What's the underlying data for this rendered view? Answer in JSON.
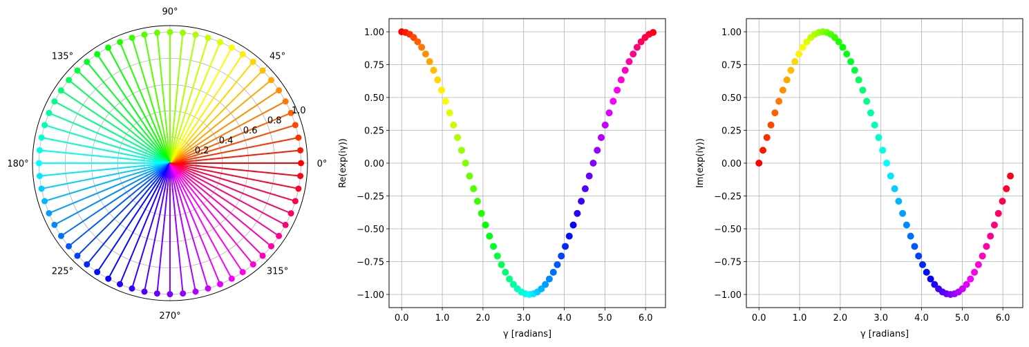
{
  "colormap": "hsv",
  "chart_data": [
    {
      "type": "polar-stem",
      "title": "",
      "theta_unit": "radians",
      "theta_tick_labels": [
        "0°",
        "45°",
        "90°",
        "135°",
        "180°",
        "225°",
        "270°",
        "315°"
      ],
      "r_tick_labels": [
        "0.2",
        "0.4",
        "0.6",
        "0.8",
        "1.0"
      ],
      "r_ticks": [
        0.2,
        0.4,
        0.6,
        0.8,
        1.0
      ],
      "rlim": [
        0,
        1.05
      ],
      "grid": true,
      "theta": [
        0,
        0.098,
        0.196,
        0.295,
        0.393,
        0.491,
        0.589,
        0.687,
        0.785,
        0.884,
        0.982,
        1.08,
        1.178,
        1.276,
        1.374,
        1.473,
        1.571,
        1.669,
        1.767,
        1.865,
        1.963,
        2.062,
        2.16,
        2.258,
        2.356,
        2.454,
        2.553,
        2.651,
        2.749,
        2.847,
        2.945,
        3.043,
        3.142,
        3.24,
        3.338,
        3.436,
        3.534,
        3.632,
        3.731,
        3.829,
        3.927,
        4.025,
        4.123,
        4.222,
        4.32,
        4.418,
        4.516,
        4.614,
        4.712,
        4.811,
        4.909,
        5.007,
        5.105,
        5.203,
        5.301,
        5.4,
        5.498,
        5.596,
        5.694,
        5.792,
        5.89,
        5.989,
        6.087,
        6.185
      ],
      "r": 1.0
    },
    {
      "type": "scatter",
      "xlabel": "γ [radians]",
      "ylabel": "Re(exp(iγ))",
      "xlim": [
        -0.31,
        6.49
      ],
      "ylim": [
        -1.1,
        1.1
      ],
      "x_ticks": [
        0,
        1,
        2,
        3,
        4,
        5,
        6
      ],
      "x_tick_labels": [
        "0.0",
        "1.0",
        "2.0",
        "3.0",
        "4.0",
        "5.0",
        "6.0"
      ],
      "y_ticks": [
        -1,
        -0.75,
        -0.5,
        -0.25,
        0,
        0.25,
        0.5,
        0.75,
        1
      ],
      "y_tick_labels": [
        "−1.00",
        "−0.75",
        "−0.50",
        "−0.25",
        "0.00",
        "0.25",
        "0.50",
        "0.75",
        "1.00"
      ],
      "grid": true,
      "x": [
        0,
        0.098,
        0.196,
        0.295,
        0.393,
        0.491,
        0.589,
        0.687,
        0.785,
        0.884,
        0.982,
        1.08,
        1.178,
        1.276,
        1.374,
        1.473,
        1.571,
        1.669,
        1.767,
        1.865,
        1.963,
        2.062,
        2.16,
        2.258,
        2.356,
        2.454,
        2.553,
        2.651,
        2.749,
        2.847,
        2.945,
        3.043,
        3.142,
        3.24,
        3.338,
        3.436,
        3.534,
        3.632,
        3.731,
        3.829,
        3.927,
        4.025,
        4.123,
        4.222,
        4.32,
        4.418,
        4.516,
        4.614,
        4.712,
        4.811,
        4.909,
        5.007,
        5.105,
        5.203,
        5.301,
        5.4,
        5.498,
        5.596,
        5.694,
        5.792,
        5.89,
        5.989,
        6.087,
        6.185
      ],
      "y": [
        1,
        0.995,
        0.981,
        0.957,
        0.924,
        0.882,
        0.831,
        0.773,
        0.707,
        0.634,
        0.556,
        0.471,
        0.383,
        0.29,
        0.195,
        0.098,
        0,
        -0.098,
        -0.195,
        -0.29,
        -0.383,
        -0.471,
        -0.556,
        -0.634,
        -0.707,
        -0.773,
        -0.831,
        -0.882,
        -0.924,
        -0.957,
        -0.981,
        -0.995,
        -1,
        -0.995,
        -0.981,
        -0.957,
        -0.924,
        -0.882,
        -0.831,
        -0.773,
        -0.707,
        -0.634,
        -0.556,
        -0.471,
        -0.383,
        -0.29,
        -0.195,
        -0.098,
        0,
        0.098,
        0.195,
        0.29,
        0.383,
        0.471,
        0.556,
        0.634,
        0.707,
        0.773,
        0.831,
        0.882,
        0.924,
        0.957,
        0.981,
        0.995
      ]
    },
    {
      "type": "scatter",
      "xlabel": "γ [radians]",
      "ylabel": "Im(exp(iγ))",
      "xlim": [
        -0.31,
        6.49
      ],
      "ylim": [
        -1.1,
        1.1
      ],
      "x_ticks": [
        0,
        1,
        2,
        3,
        4,
        5,
        6
      ],
      "x_tick_labels": [
        "0.0",
        "1.0",
        "2.0",
        "3.0",
        "4.0",
        "5.0",
        "6.0"
      ],
      "y_ticks": [
        -1,
        -0.75,
        -0.5,
        -0.25,
        0,
        0.25,
        0.5,
        0.75,
        1
      ],
      "y_tick_labels": [
        "−1.00",
        "−0.75",
        "−0.50",
        "−0.25",
        "0.00",
        "0.25",
        "0.50",
        "0.75",
        "1.00"
      ],
      "grid": true,
      "x": [
        0,
        0.098,
        0.196,
        0.295,
        0.393,
        0.491,
        0.589,
        0.687,
        0.785,
        0.884,
        0.982,
        1.08,
        1.178,
        1.276,
        1.374,
        1.473,
        1.571,
        1.669,
        1.767,
        1.865,
        1.963,
        2.062,
        2.16,
        2.258,
        2.356,
        2.454,
        2.553,
        2.651,
        2.749,
        2.847,
        2.945,
        3.043,
        3.142,
        3.24,
        3.338,
        3.436,
        3.534,
        3.632,
        3.731,
        3.829,
        3.927,
        4.025,
        4.123,
        4.222,
        4.32,
        4.418,
        4.516,
        4.614,
        4.712,
        4.811,
        4.909,
        5.007,
        5.105,
        5.203,
        5.301,
        5.4,
        5.498,
        5.596,
        5.694,
        5.792,
        5.89,
        5.989,
        6.087,
        6.185
      ],
      "y": [
        0,
        0.098,
        0.195,
        0.29,
        0.383,
        0.471,
        0.556,
        0.634,
        0.707,
        0.773,
        0.831,
        0.882,
        0.924,
        0.957,
        0.981,
        0.995,
        1,
        0.995,
        0.981,
        0.957,
        0.924,
        0.882,
        0.831,
        0.773,
        0.707,
        0.634,
        0.556,
        0.471,
        0.383,
        0.29,
        0.195,
        0.098,
        0,
        -0.098,
        -0.195,
        -0.29,
        -0.383,
        -0.471,
        -0.556,
        -0.634,
        -0.707,
        -0.773,
        -0.831,
        -0.882,
        -0.924,
        -0.957,
        -0.981,
        -0.995,
        -1,
        -0.995,
        -0.981,
        -0.957,
        -0.924,
        -0.882,
        -0.831,
        -0.773,
        -0.707,
        -0.634,
        -0.556,
        -0.471,
        -0.383,
        -0.29,
        -0.195,
        -0.098
      ]
    }
  ]
}
